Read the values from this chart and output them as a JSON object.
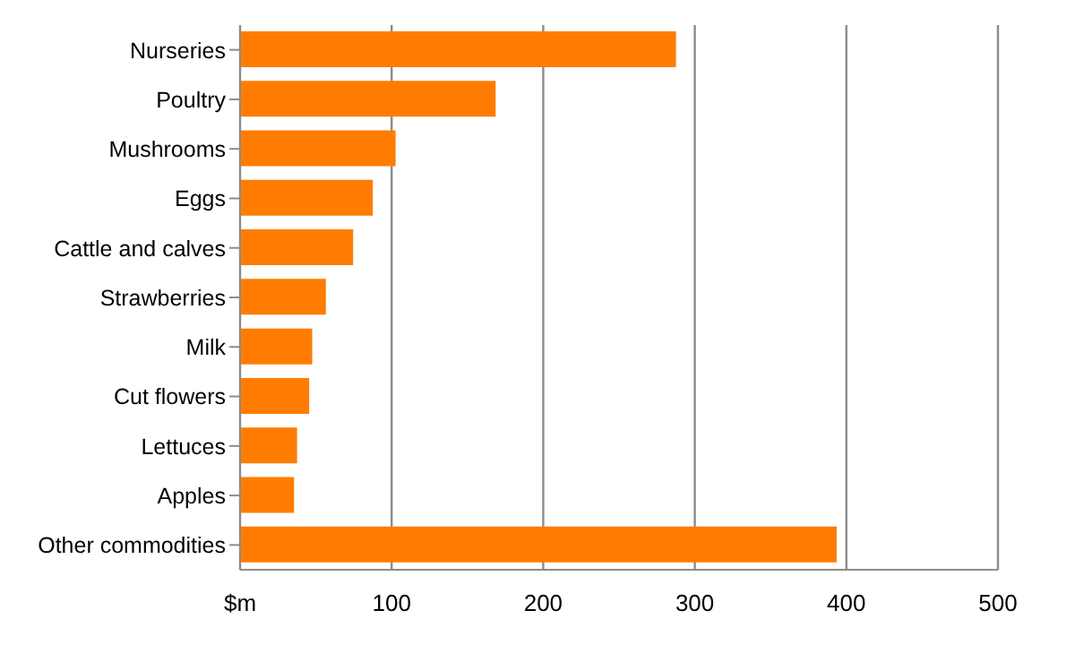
{
  "chart_data": {
    "type": "bar",
    "orientation": "horizontal",
    "categories": [
      "Nurseries",
      "Poultry",
      "Mushrooms",
      "Eggs",
      "Cattle and calves",
      "Strawberries",
      "Milk",
      "Cut flowers",
      "Lettuces",
      "Apples",
      "Other commodities"
    ],
    "values": [
      287,
      168,
      102,
      87,
      74,
      56,
      47,
      45,
      37,
      35,
      393
    ],
    "color": "#ff7c00",
    "xlim": [
      0,
      500
    ],
    "xticks": [
      {
        "value": 0,
        "label": "$m"
      },
      100,
      200,
      300,
      400,
      500
    ],
    "grid": "x"
  }
}
